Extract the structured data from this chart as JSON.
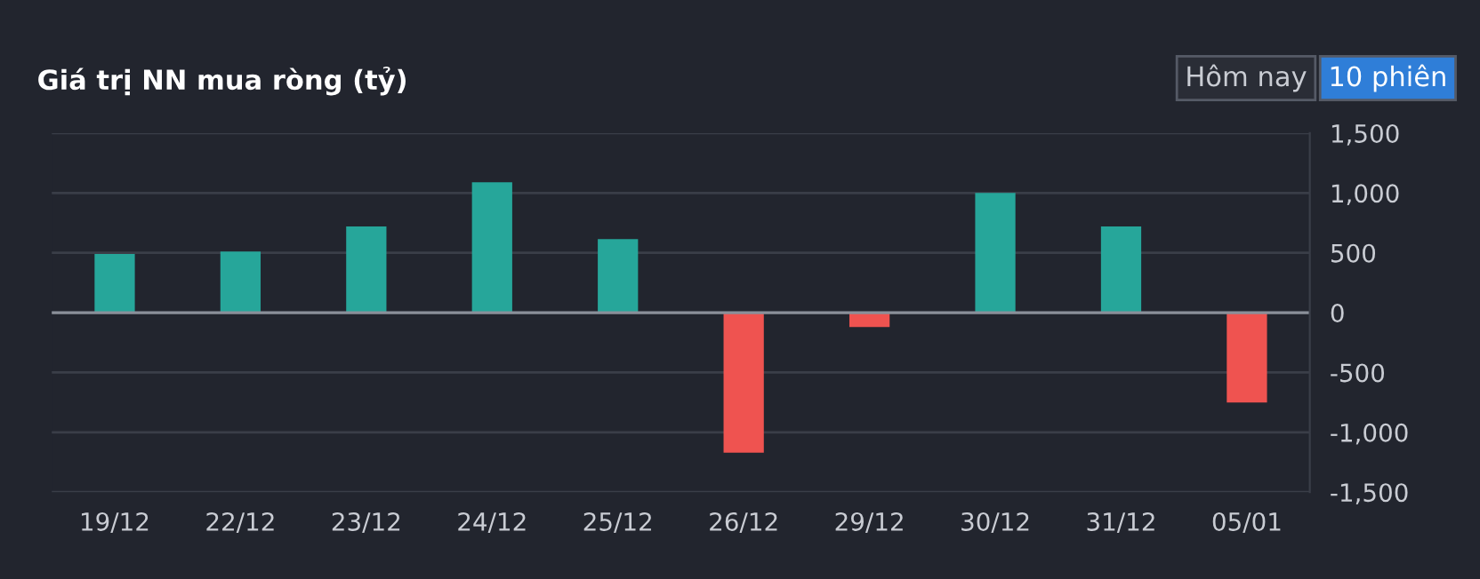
{
  "chart_data": {
    "type": "bar",
    "title": "Giá trị NN mua ròng (tỷ)",
    "annotations": [
      "Hôm nay",
      "10 phiên"
    ],
    "categories": [
      "19/12",
      "22/12",
      "23/12",
      "24/12",
      "25/12",
      "26/12",
      "29/12",
      "30/12",
      "31/12",
      "05/01"
    ],
    "values": [
      490,
      510,
      720,
      1090,
      615,
      -1170,
      -120,
      1000,
      720,
      -750
    ],
    "colors": [
      "#26a69a",
      "#26a69a",
      "#26a69a",
      "#26a69a",
      "#26a69a",
      "#ef5350",
      "#ef5350",
      "#26a69a",
      "#26a69a",
      "#ef5350"
    ],
    "ylim": [
      -1500,
      1500
    ],
    "yticks": [
      {
        "value": -1500,
        "label": "-1,500"
      },
      {
        "value": -1000,
        "label": "-1,000"
      },
      {
        "value": -500,
        "label": "-500"
      },
      0,
      500,
      {
        "value": 1000,
        "label": "1,000"
      },
      {
        "value": 1500,
        "label": "1,500"
      }
    ],
    "grid": "y"
  }
}
